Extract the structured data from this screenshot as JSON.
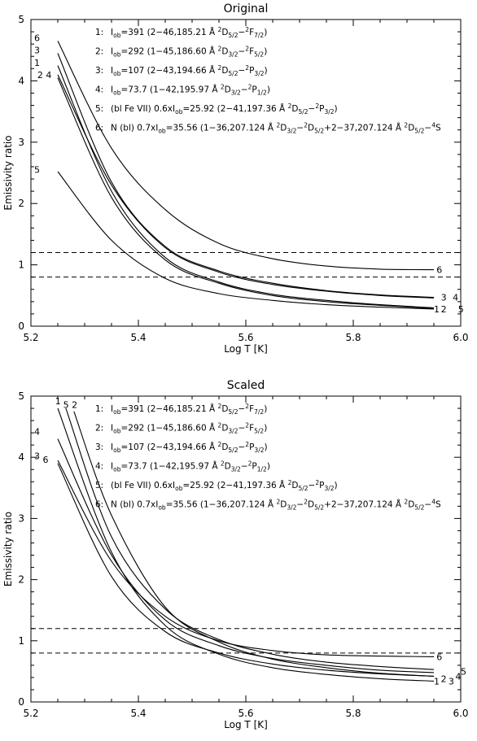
{
  "chart_data": [
    {
      "type": "line",
      "title": "Original",
      "xlabel": "Log T [K]",
      "ylabel": "Emissivity ratio",
      "xlim": [
        5.2,
        6.0
      ],
      "ylim": [
        0,
        5
      ],
      "xticks": [
        "5.2",
        "5.4",
        "5.6",
        "5.8",
        "6.0"
      ],
      "yticks": [
        "0",
        "1",
        "2",
        "3",
        "4",
        "5"
      ],
      "hlines": [
        1.2,
        0.8
      ],
      "legend": [
        {
          "num": "1:",
          "text": "I_ob=391 (2−46,185.21 Å ²D5/2−²F7/2)"
        },
        {
          "num": "2:",
          "text": "I_ob=292 (1−45,186.60 Å ²D3/2−²F5/2)"
        },
        {
          "num": "3:",
          "text": "I_ob=107 (2−43,194.66 Å ²D5/2−²P3/2)"
        },
        {
          "num": "4:",
          "text": "I_ob=73.7 (1−42,195.97 Å ²D3/2−²P1/2)"
        },
        {
          "num": "5:",
          "text": "(bl Fe VII) 0.6xI_ob=25.92 (2−41,197.36 Å ²D5/2−²P3/2)"
        },
        {
          "num": "6:",
          "text": "N (bl) 0.7xI_ob=35.56 (1−36,207.124 Å ²D3/2−²D5/2+2−37,207.124 Å ²D5/2−⁴S"
        }
      ],
      "series": [
        {
          "name": "1",
          "x": [
            5.25,
            5.35,
            5.45,
            5.55,
            5.65,
            5.75,
            5.85,
            5.95
          ],
          "y": [
            4.25,
            2.2,
            1.12,
            0.72,
            0.52,
            0.42,
            0.35,
            0.3
          ]
        },
        {
          "name": "2",
          "x": [
            5.25,
            5.35,
            5.45,
            5.55,
            5.65,
            5.75,
            5.85,
            5.95
          ],
          "y": [
            4.05,
            2.1,
            1.08,
            0.7,
            0.5,
            0.4,
            0.34,
            0.29
          ]
        },
        {
          "name": "3",
          "x": [
            5.25,
            5.35,
            5.45,
            5.55,
            5.65,
            5.75,
            5.85,
            5.95
          ],
          "y": [
            4.45,
            2.35,
            1.3,
            0.9,
            0.7,
            0.58,
            0.51,
            0.47
          ]
        },
        {
          "name": "4",
          "x": [
            5.25,
            5.35,
            5.45,
            5.55,
            5.65,
            5.75,
            5.85,
            5.95
          ],
          "y": [
            4.1,
            2.3,
            1.28,
            0.88,
            0.68,
            0.57,
            0.5,
            0.46
          ]
        },
        {
          "name": "5",
          "x": [
            5.25,
            5.35,
            5.45,
            5.55,
            5.65,
            5.75,
            5.85,
            5.95
          ],
          "y": [
            2.52,
            1.4,
            0.78,
            0.53,
            0.42,
            0.35,
            0.31,
            0.28
          ]
        },
        {
          "name": "6",
          "x": [
            5.25,
            5.35,
            5.45,
            5.55,
            5.65,
            5.75,
            5.85,
            5.95
          ],
          "y": [
            4.65,
            2.9,
            1.9,
            1.35,
            1.1,
            0.98,
            0.93,
            0.92
          ]
        }
      ],
      "curve_labels": [
        {
          "text": "6",
          "x": 5.206,
          "y": 4.7
        },
        {
          "text": "3",
          "x": 5.206,
          "y": 4.5
        },
        {
          "text": "1",
          "x": 5.206,
          "y": 4.3
        },
        {
          "text": "2 4",
          "x": 5.212,
          "y": 4.1
        },
        {
          "text": "5",
          "x": 5.206,
          "y": 2.55
        },
        {
          "text": "6",
          "x": 5.955,
          "y": 0.92
        },
        {
          "text": "3",
          "x": 5.963,
          "y": 0.47
        },
        {
          "text": "4",
          "x": 5.985,
          "y": 0.47
        },
        {
          "text": "1",
          "x": 5.95,
          "y": 0.28
        },
        {
          "text": "2",
          "x": 5.963,
          "y": 0.28
        },
        {
          "text": "5",
          "x": 5.995,
          "y": 0.28
        }
      ]
    },
    {
      "type": "line",
      "title": "Scaled",
      "xlabel": "Log T [K]",
      "ylabel": "Emissivity ratio",
      "xlim": [
        5.2,
        6.0
      ],
      "ylim": [
        0,
        5
      ],
      "xticks": [
        "5.2",
        "5.4",
        "5.6",
        "5.8",
        "6.0"
      ],
      "yticks": [
        "0",
        "1",
        "2",
        "3",
        "4",
        "5"
      ],
      "hlines": [
        1.2,
        0.8
      ],
      "legend": [
        {
          "num": "1:",
          "text": "I_ob=391 (2−46,185.21 Å ²D5/2−²F7/2)"
        },
        {
          "num": "2:",
          "text": "I_ob=292 (1−45,186.60 Å ²D3/2−²F5/2)"
        },
        {
          "num": "3:",
          "text": "I_ob=107 (2−43,194.66 Å ²D5/2−²P3/2)"
        },
        {
          "num": "4:",
          "text": "I_ob=73.7 (1−42,195.97 Å ²D3/2−²P1/2)"
        },
        {
          "num": "5:",
          "text": "(bl Fe VII) 0.6xI_ob=25.92 (2−41,197.36 Å ²D5/2−²P3/2)"
        },
        {
          "num": "6:",
          "text": "N (bl) 0.7xI_ob=35.56 (1−36,207.124 Å ²D3/2−²D5/2+2−37,207.124 Å ²D5/2−⁴S"
        }
      ],
      "series": [
        {
          "name": "1",
          "x": [
            5.25,
            5.35,
            5.45,
            5.55,
            5.65,
            5.75,
            5.85,
            5.95
          ],
          "y": [
            4.8,
            2.45,
            1.25,
            0.78,
            0.56,
            0.45,
            0.38,
            0.34
          ]
        },
        {
          "name": "2",
          "x": [
            5.28,
            5.35,
            5.45,
            5.55,
            5.65,
            5.75,
            5.85,
            5.95
          ],
          "y": [
            4.75,
            3.05,
            1.55,
            0.98,
            0.7,
            0.56,
            0.47,
            0.42
          ]
        },
        {
          "name": "3",
          "x": [
            5.25,
            5.35,
            5.45,
            5.55,
            5.65,
            5.75,
            5.85,
            5.95
          ],
          "y": [
            3.9,
            2.05,
            1.15,
            0.8,
            0.62,
            0.52,
            0.46,
            0.42
          ]
        },
        {
          "name": "4",
          "x": [
            5.25,
            5.35,
            5.45,
            5.55,
            5.65,
            5.75,
            5.85,
            5.95
          ],
          "y": [
            4.3,
            2.4,
            1.34,
            0.92,
            0.71,
            0.6,
            0.52,
            0.48
          ]
        },
        {
          "name": "5",
          "x": [
            5.265,
            5.35,
            5.45,
            5.55,
            5.65,
            5.75,
            5.85,
            5.95
          ],
          "y": [
            4.8,
            2.7,
            1.52,
            1.02,
            0.78,
            0.65,
            0.58,
            0.53
          ]
        },
        {
          "name": "6",
          "x": [
            5.25,
            5.35,
            5.45,
            5.55,
            5.65,
            5.75,
            5.85,
            5.95
          ],
          "y": [
            3.95,
            2.3,
            1.4,
            1.0,
            0.84,
            0.77,
            0.75,
            0.74
          ]
        }
      ],
      "curve_labels": [
        {
          "text": "1",
          "x": 5.245,
          "y": 4.92
        },
        {
          "text": "5",
          "x": 5.26,
          "y": 4.86
        },
        {
          "text": "2",
          "x": 5.276,
          "y": 4.86
        },
        {
          "text": "4",
          "x": 5.206,
          "y": 4.42
        },
        {
          "text": "3",
          "x": 5.206,
          "y": 4.02
        },
        {
          "text": "6",
          "x": 5.222,
          "y": 3.96
        },
        {
          "text": "6",
          "x": 5.955,
          "y": 0.74
        },
        {
          "text": "1",
          "x": 5.95,
          "y": 0.34
        },
        {
          "text": "2",
          "x": 5.963,
          "y": 0.38
        },
        {
          "text": "3",
          "x": 5.977,
          "y": 0.34
        },
        {
          "text": "4",
          "x": 5.99,
          "y": 0.42
        },
        {
          "text": "5",
          "x": 6.0,
          "y": 0.5
        }
      ]
    }
  ]
}
